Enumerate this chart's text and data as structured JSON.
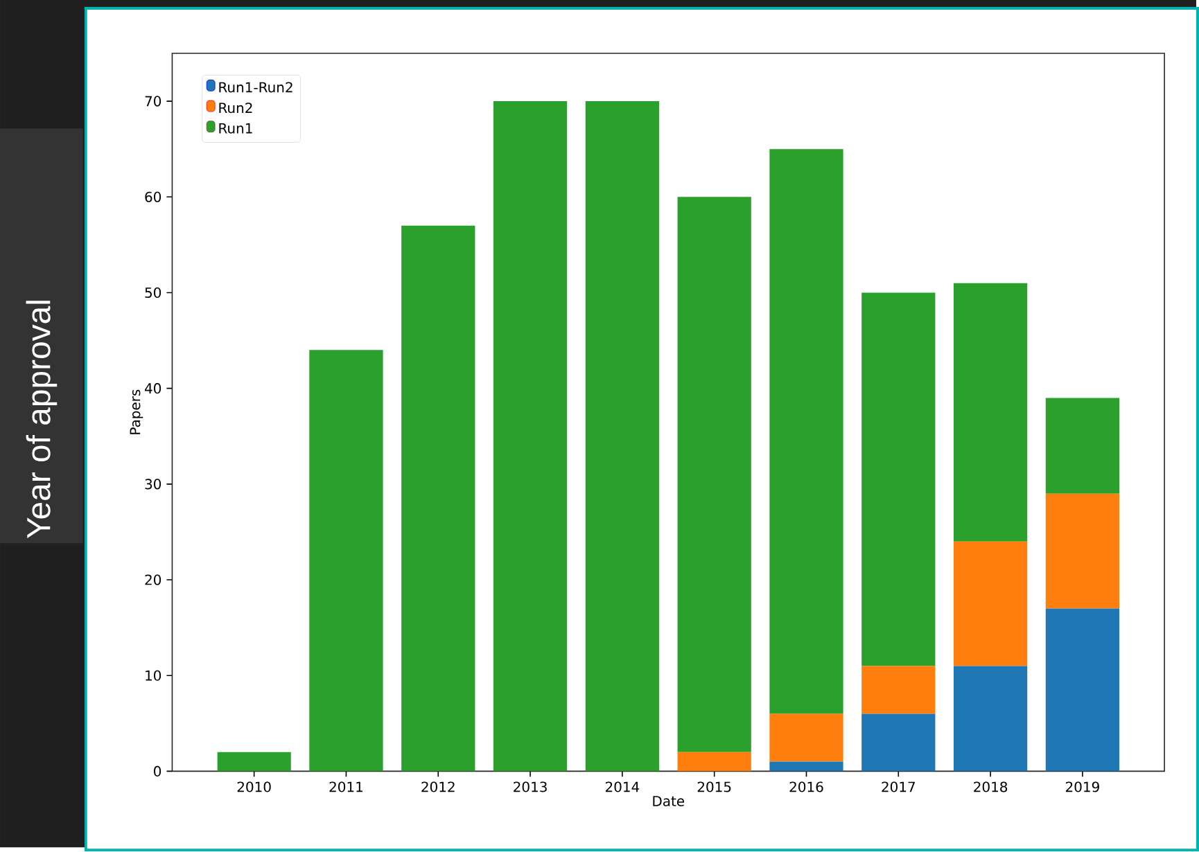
{
  "chart_data": {
    "type": "bar",
    "stacked": true,
    "xlabel": "Date",
    "ylabel": "Papers",
    "categories": [
      "2010",
      "2011",
      "2012",
      "2013",
      "2014",
      "2015",
      "2016",
      "2017",
      "2018",
      "2019"
    ],
    "series": [
      {
        "name": "Run1-Run2",
        "color": "#1f77b4",
        "values": [
          0,
          0,
          0,
          0,
          0,
          0,
          1,
          6,
          11,
          17
        ]
      },
      {
        "name": "Run2",
        "color": "#ff7f0e",
        "values": [
          0,
          0,
          0,
          0,
          0,
          2,
          5,
          5,
          13,
          12
        ]
      },
      {
        "name": "Run1",
        "color": "#2ca02c",
        "values": [
          2,
          44,
          57,
          70,
          70,
          58,
          59,
          39,
          27,
          10
        ]
      }
    ],
    "ylim": [
      0,
      75
    ],
    "yticks": [
      0,
      10,
      20,
      30,
      40,
      50,
      60,
      70
    ],
    "legend": "top left",
    "annotations": [
      "Year of approval"
    ]
  }
}
